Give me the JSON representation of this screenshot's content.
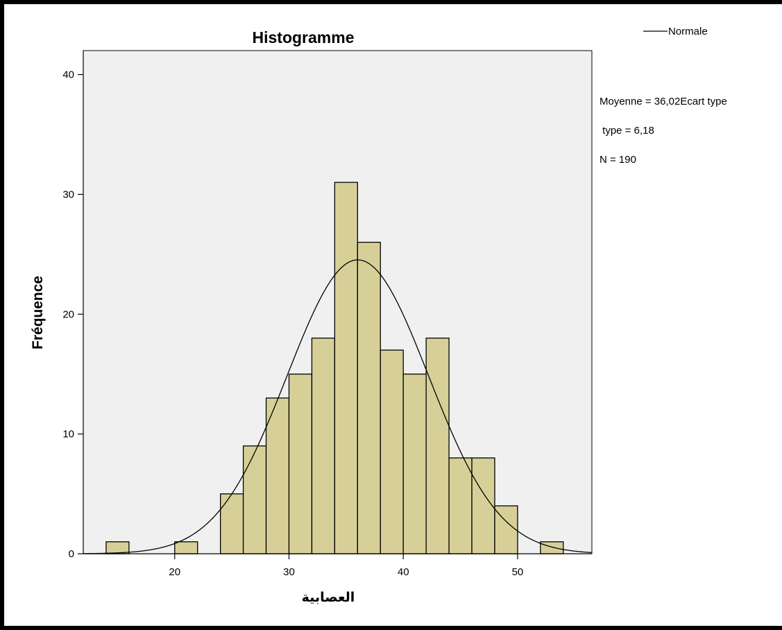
{
  "chart_data": {
    "type": "bar",
    "title": "Histogramme",
    "xlabel": "العصابية",
    "ylabel": "Fréquence",
    "xlim": [
      12,
      56.5
    ],
    "ylim": [
      0,
      42
    ],
    "x_ticks": [
      20,
      30,
      40,
      50
    ],
    "y_ticks": [
      0,
      10,
      20,
      30,
      40
    ],
    "bin_width": 2,
    "bins": [
      {
        "start": 14,
        "end": 16,
        "count": 1
      },
      {
        "start": 20,
        "end": 22,
        "count": 1
      },
      {
        "start": 24,
        "end": 26,
        "count": 5
      },
      {
        "start": 26,
        "end": 28,
        "count": 9
      },
      {
        "start": 28,
        "end": 30,
        "count": 13
      },
      {
        "start": 30,
        "end": 32,
        "count": 15
      },
      {
        "start": 32,
        "end": 34,
        "count": 18
      },
      {
        "start": 34,
        "end": 36,
        "count": 31
      },
      {
        "start": 36,
        "end": 38,
        "count": 26
      },
      {
        "start": 38,
        "end": 40,
        "count": 17
      },
      {
        "start": 40,
        "end": 42,
        "count": 15
      },
      {
        "start": 42,
        "end": 44,
        "count": 18
      },
      {
        "start": 44,
        "end": 46,
        "count": 8
      },
      {
        "start": 46,
        "end": 48,
        "count": 8
      },
      {
        "start": 48,
        "end": 50,
        "count": 4
      },
      {
        "start": 52,
        "end": 54,
        "count": 1
      }
    ],
    "normal_curve": {
      "name": "Normale",
      "mean": 36.02,
      "sd": 6.18,
      "n": 190
    },
    "legend": {
      "label": "Normale",
      "position": "top-right"
    },
    "stats_lines": [
      "Moyenne = 36,02Ecart type",
      " type = 6,18",
      "N = 190"
    ],
    "grid": false,
    "colors": {
      "bar_fill": "#d6d098",
      "plot_bg": "#f0f0f0",
      "line": "#000000"
    }
  }
}
